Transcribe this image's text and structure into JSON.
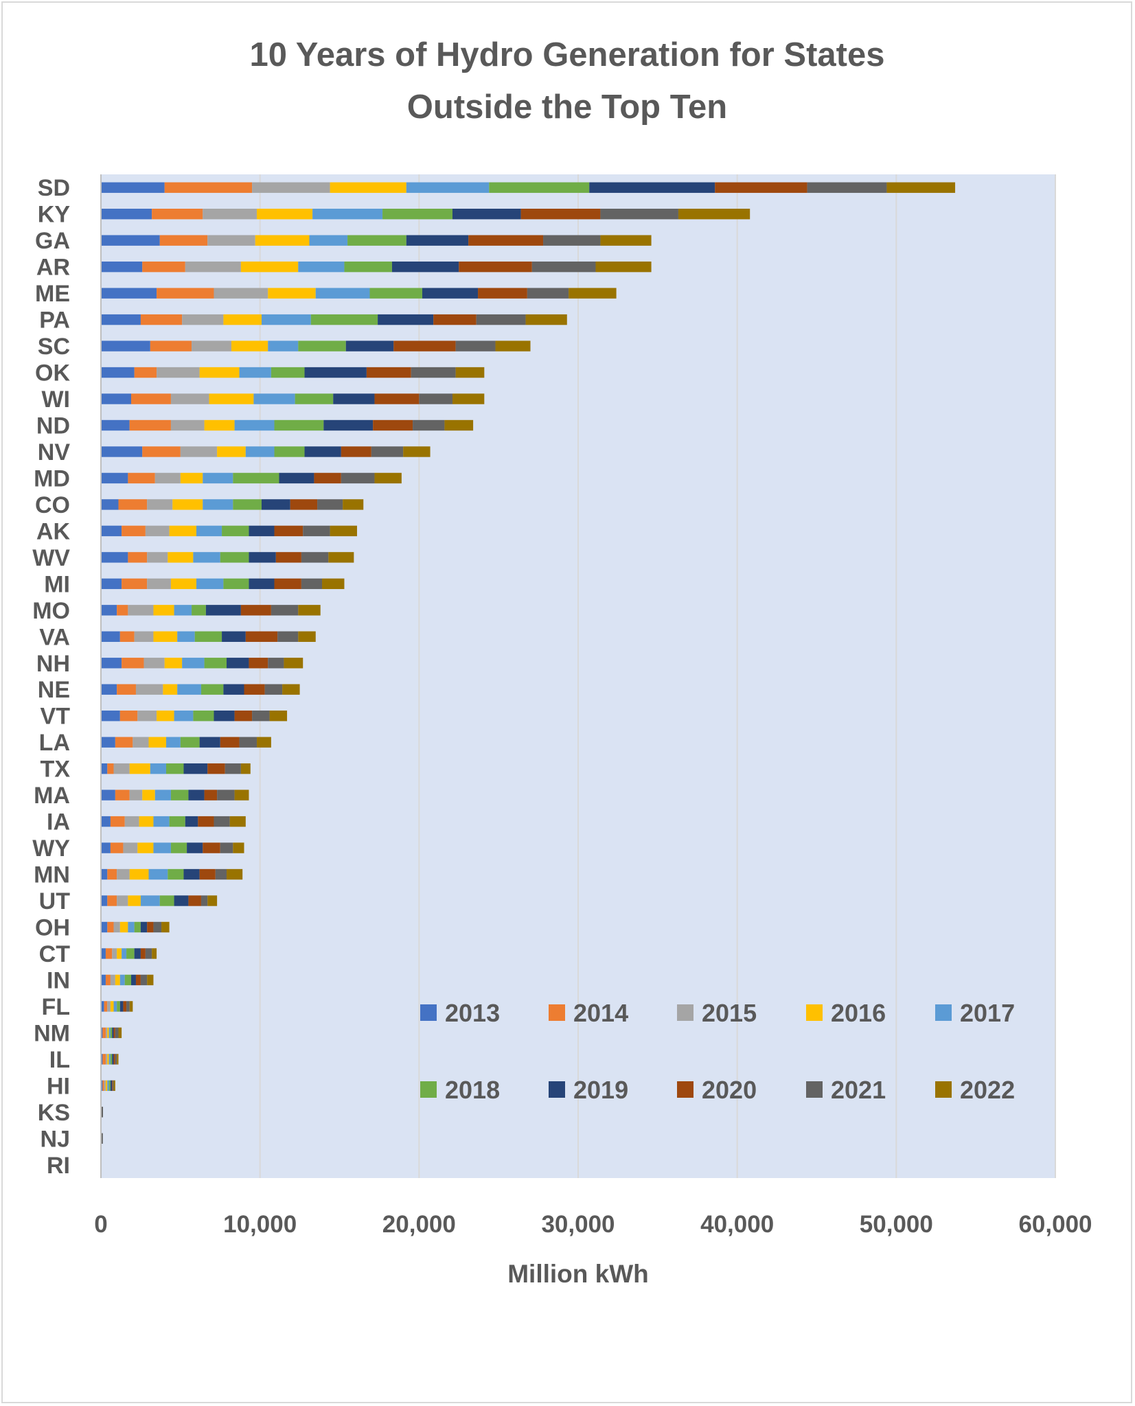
{
  "chart_data": {
    "type": "bar",
    "orientation": "horizontal",
    "stacked": true,
    "title_lines": [
      "10 Years of Hydro Generation for States",
      "Outside the Top Ten"
    ],
    "xlabel": "Million kWh",
    "xlim": [
      0,
      60000
    ],
    "xticks": [
      0,
      10000,
      20000,
      30000,
      40000,
      50000,
      60000
    ],
    "xtick_labels": [
      "0",
      "10,000",
      "20,000",
      "30,000",
      "40,000",
      "50,000",
      "60,000"
    ],
    "grid": "vertical",
    "legend": "bottom-right",
    "categories": [
      "SD",
      "KY",
      "GA",
      "AR",
      "ME",
      "PA",
      "SC",
      "OK",
      "WI",
      "ND",
      "NV",
      "MD",
      "CO",
      "AK",
      "WV",
      "MI",
      "MO",
      "VA",
      "NH",
      "NE",
      "VT",
      "LA",
      "TX",
      "MA",
      "IA",
      "WY",
      "MN",
      "UT",
      "OH",
      "CT",
      "IN",
      "FL",
      "NM",
      "IL",
      "HI",
      "KS",
      "NJ",
      "RI"
    ],
    "series": [
      {
        "name": "2013",
        "color": "#4472C4",
        "values": [
          4000,
          3200,
          3700,
          2600,
          3500,
          2500,
          3100,
          2100,
          1900,
          1800,
          2600,
          1700,
          1100,
          1300,
          1700,
          1300,
          1000,
          1200,
          1300,
          1000,
          1200,
          900,
          400,
          900,
          600,
          600,
          400,
          400,
          400,
          300,
          300,
          200,
          100,
          100,
          100,
          30,
          20,
          10
        ]
      },
      {
        "name": "2014",
        "color": "#ED7D31",
        "values": [
          5500,
          3200,
          3000,
          2700,
          3600,
          2600,
          2600,
          1400,
          2500,
          2600,
          2400,
          1700,
          1800,
          1500,
          1200,
          1600,
          700,
          900,
          1400,
          1200,
          1100,
          1100,
          400,
          900,
          900,
          800,
          600,
          600,
          400,
          400,
          300,
          200,
          200,
          200,
          100,
          0,
          0,
          0
        ]
      },
      {
        "name": "2015",
        "color": "#A5A5A5",
        "values": [
          4900,
          3400,
          3000,
          3500,
          3400,
          2600,
          2500,
          2700,
          2400,
          2100,
          2300,
          1600,
          1600,
          1500,
          1300,
          1500,
          1600,
          1200,
          1300,
          1700,
          1200,
          1000,
          1000,
          800,
          900,
          900,
          800,
          700,
          400,
          300,
          300,
          200,
          100,
          100,
          100,
          0,
          0,
          0
        ]
      },
      {
        "name": "2016",
        "color": "#FFC000",
        "values": [
          4800,
          3500,
          3400,
          3600,
          3000,
          2400,
          2300,
          2500,
          2800,
          1900,
          1800,
          1400,
          1900,
          1700,
          1600,
          1600,
          1300,
          1500,
          1100,
          900,
          1100,
          1100,
          1300,
          800,
          900,
          1000,
          1200,
          800,
          500,
          300,
          300,
          200,
          100,
          100,
          100,
          0,
          0,
          0
        ]
      },
      {
        "name": "2017",
        "color": "#5B9BD5",
        "values": [
          5200,
          4400,
          2400,
          2900,
          3400,
          3100,
          1900,
          2000,
          2600,
          2500,
          1800,
          1900,
          1900,
          1600,
          1700,
          1700,
          1100,
          1100,
          1400,
          1500,
          1200,
          900,
          1000,
          1000,
          1000,
          1100,
          1200,
          1200,
          400,
          300,
          300,
          200,
          100,
          100,
          100,
          0,
          0,
          0
        ]
      },
      {
        "name": "2018",
        "color": "#70AD47",
        "values": [
          6300,
          4400,
          3700,
          3000,
          3300,
          4200,
          3000,
          2100,
          2400,
          3100,
          1900,
          2900,
          1800,
          1700,
          1800,
          1600,
          900,
          1700,
          1400,
          1400,
          1300,
          1200,
          1100,
          1100,
          1000,
          1000,
          1000,
          900,
          400,
          500,
          400,
          200,
          100,
          100,
          100,
          0,
          0,
          0
        ]
      },
      {
        "name": "2019",
        "color": "#264478",
        "values": [
          7900,
          4300,
          3900,
          4200,
          3500,
          3500,
          3000,
          3900,
          2600,
          3100,
          2300,
          2200,
          1800,
          1600,
          1700,
          1600,
          2200,
          1500,
          1400,
          1300,
          1300,
          1300,
          1500,
          1000,
          800,
          1000,
          1000,
          900,
          400,
          400,
          300,
          200,
          100,
          100,
          100,
          0,
          0,
          0
        ]
      },
      {
        "name": "2020",
        "color": "#9E480E",
        "values": [
          5800,
          5000,
          4700,
          4600,
          3100,
          2700,
          3900,
          2800,
          2800,
          2500,
          1900,
          1700,
          1700,
          1800,
          1600,
          1700,
          1900,
          2000,
          1200,
          1300,
          1100,
          1200,
          1100,
          800,
          1000,
          1100,
          1000,
          800,
          400,
          300,
          300,
          200,
          100,
          100,
          50,
          0,
          0,
          0
        ]
      },
      {
        "name": "2021",
        "color": "#636363",
        "values": [
          5000,
          4900,
          3600,
          4000,
          2600,
          3100,
          2500,
          2800,
          2100,
          2000,
          2000,
          2100,
          1600,
          1700,
          1700,
          1300,
          1700,
          1300,
          1000,
          1100,
          1100,
          1100,
          1000,
          1100,
          1000,
          800,
          700,
          400,
          500,
          400,
          400,
          200,
          200,
          100,
          50,
          100,
          100,
          30
        ]
      },
      {
        "name": "2022",
        "color": "#997300",
        "values": [
          4300,
          4500,
          3200,
          3500,
          3000,
          2600,
          2200,
          1800,
          2000,
          1800,
          1700,
          1700,
          1300,
          1700,
          1600,
          1400,
          1400,
          1100,
          1200,
          1100,
          1100,
          900,
          600,
          900,
          1000,
          700,
          1000,
          600,
          500,
          300,
          400,
          200,
          200,
          100,
          100,
          0,
          0,
          0
        ]
      }
    ]
  }
}
